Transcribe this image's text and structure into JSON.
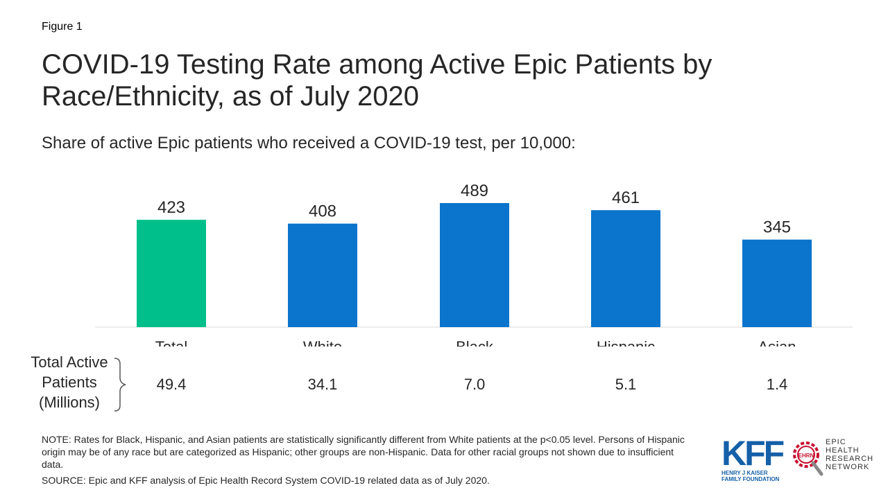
{
  "figure_label": "Figure 1",
  "title": "COVID-19 Testing Rate among Active Epic Patients by Race/Ethnicity, as of July 2020",
  "subtitle": "Share of active Epic patients who received a COVID-19 test, per 10,000:",
  "chart_data": {
    "type": "bar",
    "categories": [
      "Total",
      "White",
      "Black",
      "Hispanic",
      "Asian"
    ],
    "values": [
      423,
      408,
      489,
      461,
      345
    ],
    "colors": [
      "#00bf8a",
      "#0b74cc",
      "#0b74cc",
      "#0b74cc",
      "#0b74cc"
    ],
    "ylim": [
      0,
      489
    ],
    "grid": false,
    "legend": "none"
  },
  "totals": {
    "label_line1": "Total Active",
    "label_line2": "Patients",
    "label_line3": "(Millions)",
    "values": [
      "49.4",
      "34.1",
      "7.0",
      "5.1",
      "1.4"
    ]
  },
  "note": "NOTE: Rates for Black, Hispanic, and Asian patients are statistically significantly different from White patients at the p<0.05 level. Persons of Hispanic origin may be of any race but are categorized as Hispanic; other groups are non-Hispanic. Data for other racial groups not shown due to insufficient data.",
  "source": "SOURCE: Epic and KFF analysis of Epic Health Record System COVID-19 related data as of July 2020.",
  "logos": {
    "kff": "KFF",
    "kff_sub_line1": "HENRY J KAISER",
    "kff_sub_line2": "FAMILY FOUNDATION",
    "ehrn_badge": "EHRN",
    "ehrn_line1": "EPIC",
    "ehrn_line2": "HEALTH",
    "ehrn_line3": "RESEARCH",
    "ehrn_line4": "NETWORK"
  }
}
